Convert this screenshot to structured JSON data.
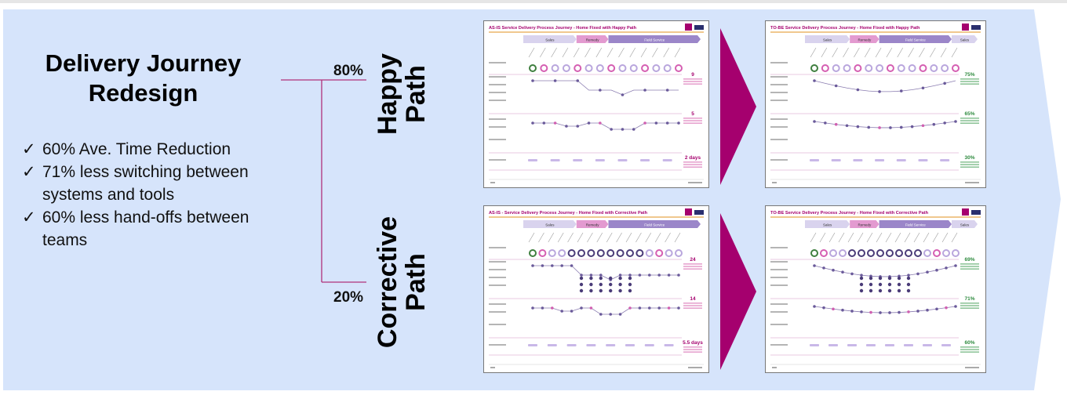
{
  "headline": {
    "line1": "Delivery Journey",
    "line2": "Redesign"
  },
  "benefits": [
    {
      "check": "✓",
      "text": "60% Ave. Time Reduction"
    },
    {
      "check": "✓",
      "text": "71% less switching between systems and tools"
    },
    {
      "check": "✓",
      "text": "60% less hand-offs between teams"
    }
  ],
  "paths": {
    "happy": {
      "percent": "80%",
      "line1": "Happy",
      "line2": "Path"
    },
    "corrective": {
      "percent": "20%",
      "line1": "Corrective",
      "line2": "Path"
    }
  },
  "thumbnails": {
    "asis_happy": {
      "title": "AS-IS Service Delivery Process Journey - Home Fixed with Happy Path",
      "phases": [
        "Sales",
        "Remedy",
        "Field Service"
      ],
      "stats": [
        "9",
        "5",
        "2 days"
      ]
    },
    "tobe_happy": {
      "title": "TO-BE Service Delivery Process Journey - Home Fixed with Happy Path",
      "phases": [
        "Sales",
        "Remedy",
        "Field Service",
        "Sales"
      ],
      "stats": [
        "75%",
        "65%",
        "30%"
      ]
    },
    "asis_corrective": {
      "title": "AS-IS - Service Delivery Process Journey - Home Fixed with Corrective Path",
      "phases": [
        "Sales",
        "Remedy",
        "Field Service"
      ],
      "stats": [
        "24",
        "14",
        "5.5 days"
      ]
    },
    "tobe_corrective": {
      "title": "TO-BE Service Delivery Process Journey - Home Fixed with Corrective Path",
      "phases": [
        "Sales",
        "Remedy",
        "Field Service",
        "Sales"
      ],
      "stats": [
        "69%",
        "71%",
        "60%"
      ]
    }
  },
  "colors": {
    "background_band": "#d6e4fb",
    "accent_magenta": "#a5006e",
    "connector": "#b0307a",
    "phase_purple": "#9b86c9",
    "stat_green": "#2d8a3e"
  }
}
